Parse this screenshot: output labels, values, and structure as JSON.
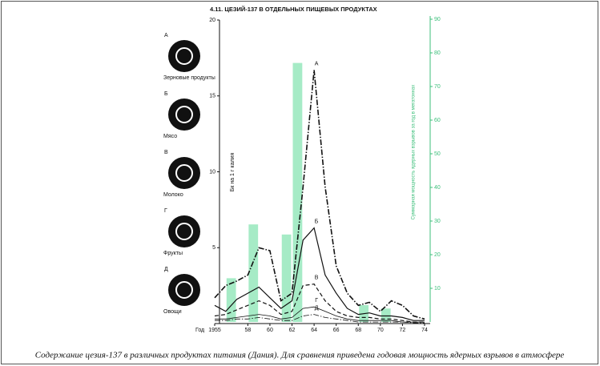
{
  "chart_data": {
    "type": "combo",
    "title": "4.11. ЦЕЗИЙ-137 В ОТДЕЛЬНЫХ ПИЩЕВЫХ ПРОДУКТАХ",
    "x_label": "Год",
    "y_label": "Бк на 1 г калия",
    "y2_label": "Суммарная мощность ядерных взрывов за год в мегатоннах",
    "x": [
      1955,
      1956,
      1957,
      1958,
      1959,
      1960,
      1961,
      1962,
      1963,
      1964,
      1965,
      1966,
      1967,
      1968,
      1969,
      1970,
      1971,
      1972,
      1973,
      1974
    ],
    "xlim": [
      1955,
      1974
    ],
    "xticks": [
      1955,
      {
        "value": 1958,
        "label": "58"
      },
      {
        "value": 1960,
        "label": "60"
      },
      {
        "value": 1962,
        "label": "62"
      },
      {
        "value": 1964,
        "label": "64"
      },
      {
        "value": 1966,
        "label": "66"
      },
      {
        "value": 1968,
        "label": "68"
      },
      {
        "value": 1970,
        "label": "70"
      },
      {
        "value": 1972,
        "label": "72"
      },
      {
        "value": 1974,
        "label": "74"
      }
    ],
    "ylim": [
      0,
      20
    ],
    "yticks": [
      5,
      10,
      15,
      20
    ],
    "y2lim": [
      0,
      90
    ],
    "y2ticks": [
      10,
      20,
      30,
      40,
      50,
      60,
      70,
      80,
      90
    ],
    "series": [
      {
        "name": "А",
        "label": "Зерновые продукты",
        "color": "#111111",
        "dash": "dash-dot",
        "width": 1.6,
        "values": [
          1.7,
          2.5,
          2.8,
          3.2,
          5.0,
          4.8,
          1.5,
          2.0,
          9.0,
          16.7,
          9.0,
          3.8,
          2.0,
          1.2,
          1.4,
          0.8,
          1.5,
          1.2,
          0.5,
          0.3
        ]
      },
      {
        "name": "Б",
        "label": "Мясо",
        "color": "#111111",
        "dash": "solid",
        "width": 1.2,
        "values": [
          1.2,
          0.8,
          1.6,
          2.0,
          2.4,
          1.7,
          1.0,
          1.5,
          5.5,
          6.3,
          3.2,
          2.0,
          1.0,
          0.6,
          0.7,
          0.5,
          0.5,
          0.4,
          0.2,
          0.2
        ]
      },
      {
        "name": "В",
        "label": "Молоко",
        "color": "#111111",
        "dash": "dash",
        "width": 1.2,
        "values": [
          0.5,
          0.6,
          0.9,
          1.2,
          1.5,
          1.2,
          0.6,
          0.8,
          2.5,
          2.6,
          1.5,
          0.8,
          0.5,
          0.4,
          0.4,
          0.3,
          0.3,
          0.2,
          0.1,
          0.1
        ]
      },
      {
        "name": "Г",
        "label": "Фрукты",
        "color": "#111111",
        "dash": "solid",
        "width": 0.8,
        "values": [
          0.3,
          0.3,
          0.4,
          0.5,
          0.6,
          0.5,
          0.3,
          0.4,
          1.0,
          1.1,
          0.8,
          0.5,
          0.3,
          0.2,
          0.2,
          0.2,
          0.2,
          0.1,
          0.1,
          0.1
        ]
      },
      {
        "name": "Д",
        "label": "Овощи",
        "color": "#111111",
        "dash": "dash-dot",
        "width": 0.8,
        "values": [
          0.2,
          0.2,
          0.3,
          0.3,
          0.4,
          0.3,
          0.2,
          0.2,
          0.5,
          0.6,
          0.4,
          0.3,
          0.2,
          0.1,
          0.1,
          0.1,
          0.1,
          0.1,
          0.05,
          0.05
        ]
      }
    ],
    "bars": {
      "axis": "y2",
      "color": "#a6ebc6",
      "x": [
        1956,
        1958,
        1961,
        1962,
        1968,
        1970
      ],
      "values": [
        13,
        29,
        26,
        77,
        5,
        4
      ]
    }
  },
  "caption": "Содержание цезия-137 в различных продуктах питания (Дания). Для сравнения приведена годовая мощность ядерных взрывов в атмосфере"
}
